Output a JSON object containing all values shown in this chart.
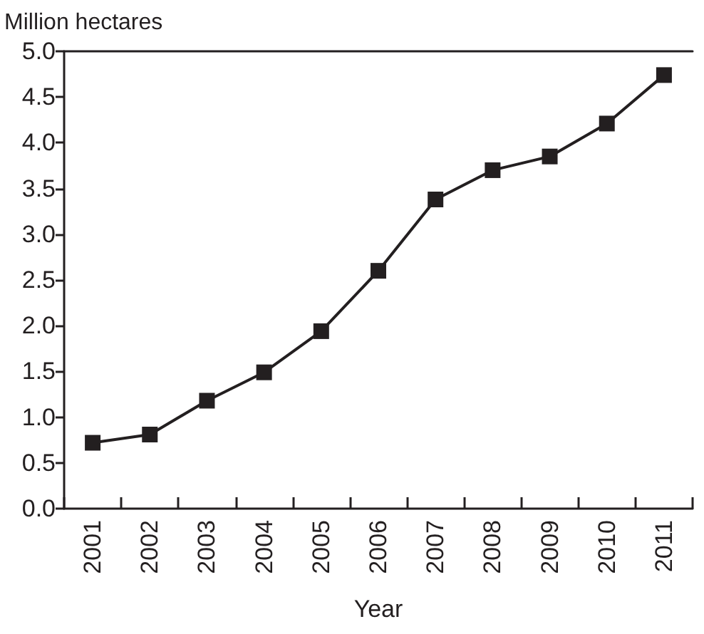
{
  "chart_data": {
    "type": "line",
    "ylabel": "Million hectares",
    "xlabel": "Year",
    "categories": [
      "2001",
      "2002",
      "2003",
      "2004",
      "2005",
      "2006",
      "2007",
      "2008",
      "2009",
      "2010",
      "2011"
    ],
    "values": [
      0.72,
      0.81,
      1.18,
      1.49,
      1.94,
      2.6,
      3.38,
      3.7,
      3.85,
      4.21,
      4.74
    ],
    "color": "#231f20",
    "marker": "square",
    "line_style": "solid",
    "ylim": [
      0,
      5
    ],
    "yticks": [
      {
        "value": 0,
        "label": "0.0"
      },
      0.5,
      {
        "value": 1,
        "label": "1.0"
      },
      1.5,
      {
        "value": 2,
        "label": "2.0"
      },
      2.5,
      {
        "value": 3,
        "label": "3.0"
      },
      3.5,
      {
        "value": 4,
        "label": "4.0"
      },
      4.5,
      {
        "value": 5,
        "label": "5.0"
      }
    ],
    "grid": false
  }
}
